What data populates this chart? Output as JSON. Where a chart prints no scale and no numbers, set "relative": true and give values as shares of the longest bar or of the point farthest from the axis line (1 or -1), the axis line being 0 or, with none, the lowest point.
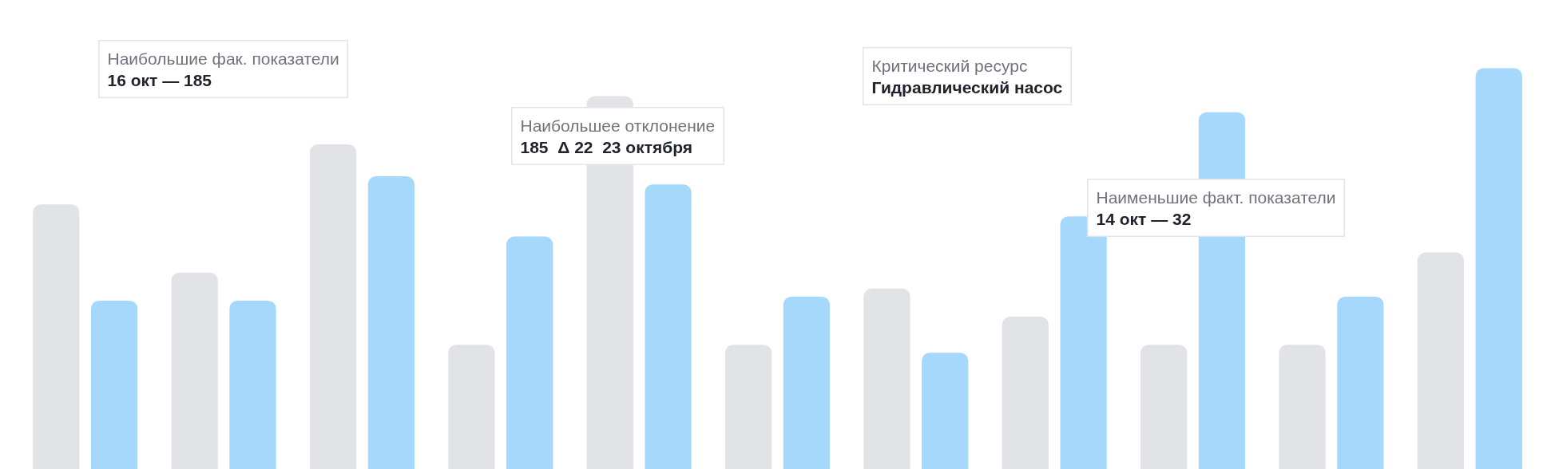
{
  "chart_data": {
    "type": "bar",
    "relative": true,
    "categories": [
      null,
      null,
      null,
      null,
      null,
      null,
      null,
      null,
      null,
      null,
      null
    ],
    "series": [
      {
        "color": "#e2e3e7",
        "values": [
          0.66,
          0.49,
          0.81,
          0.31,
          0.93,
          0.31,
          0.45,
          0.38,
          0.31,
          0.31,
          0.54
        ]
      },
      {
        "color": "#a6d8fc",
        "values": [
          0.42,
          0.42,
          0.73,
          0.58,
          0.71,
          0.43,
          0.29,
          0.63,
          0.89,
          0.43,
          1.0
        ]
      }
    ],
    "annotations": [
      "Наибольшие фак. показатели\n16 окт — 185",
      "Наибольшее отклонение\n185  Δ 22  23 октября",
      "Критический ресурс\nГидравлический насос",
      "Наименьшие факт. показатели\n14 окт — 32"
    ],
    "grid": false
  }
}
